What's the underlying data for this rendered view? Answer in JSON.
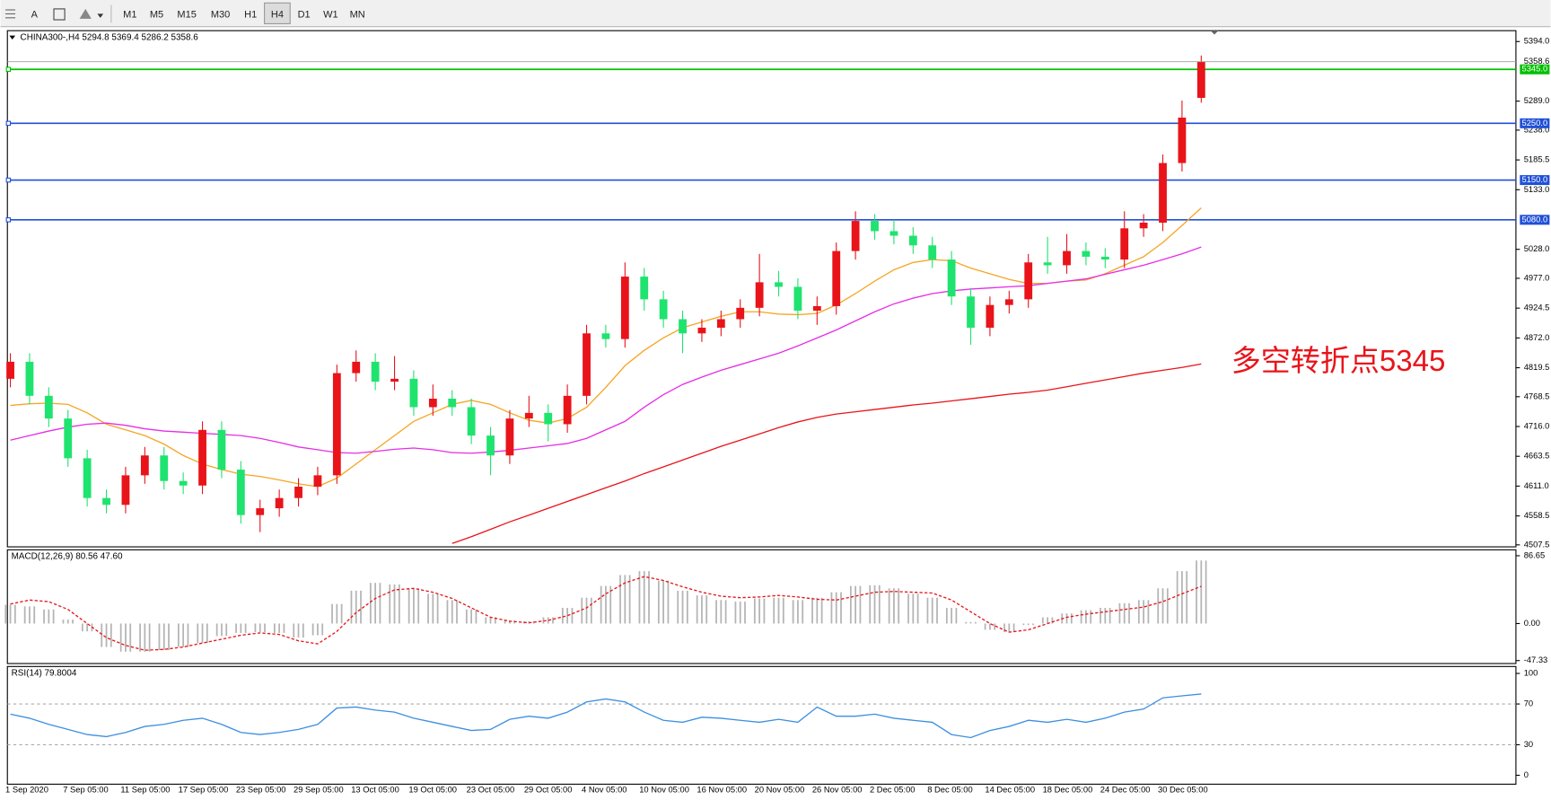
{
  "toolbar": {
    "text_tool": "A",
    "timeframes": [
      "M1",
      "M5",
      "M15",
      "M30",
      "H1",
      "H4",
      "D1",
      "W1",
      "MN"
    ],
    "active": "H4"
  },
  "chart_data": [
    {
      "type": "candlestick",
      "title": "CHINA300-,H4  5294.8 5369.4 5286.2 5358.6",
      "categories": [
        "1 Sep 2020",
        null,
        null,
        "7 Sep 05:00",
        null,
        null,
        "11 Sep 05:00",
        null,
        null,
        "17 Sep 05:00",
        null,
        null,
        "23 Sep 05:00",
        null,
        null,
        "29 Sep 05:00",
        null,
        null,
        "13 Oct 05:00",
        null,
        null,
        "19 Oct 05:00",
        null,
        null,
        "23 Oct 05:00",
        null,
        null,
        "29 Oct 05:00",
        null,
        null,
        "4 Nov 05:00",
        null,
        null,
        "10 Nov 05:00",
        null,
        null,
        "16 Nov 05:00",
        null,
        null,
        "20 Nov 05:00",
        null,
        null,
        "26 Nov 05:00",
        null,
        null,
        "2 Dec 05:00",
        null,
        null,
        "8 Dec 05:00",
        null,
        null,
        "14 Dec 05:00",
        null,
        null,
        "18 Dec 05:00",
        null,
        null,
        "24 Dec 05:00",
        null,
        null,
        "30 Dec 05:00",
        null,
        null
      ],
      "open": [
        4800,
        4830,
        4770,
        4730,
        4660,
        4590,
        4578,
        4630,
        4665,
        4620,
        4612,
        4710,
        4640,
        4560,
        4572,
        4590,
        4610,
        4630,
        4810,
        4830,
        4795,
        4800,
        4750,
        4765,
        4750,
        4700,
        4665,
        4730,
        4740,
        4720,
        4770,
        4880,
        4870,
        4980,
        4940,
        4905,
        4880,
        4890,
        4905,
        4925,
        4970,
        4962,
        4920,
        4928,
        5025,
        5078,
        5060,
        5052,
        5035,
        5010,
        4945,
        4890,
        4930,
        4940,
        5005,
        5000,
        5025,
        5015,
        5010,
        5065,
        5075,
        5180,
        5294.8
      ],
      "high": [
        4845,
        4845,
        4785,
        4745,
        4675,
        4605,
        4645,
        4680,
        4680,
        4635,
        4725,
        4725,
        4655,
        4587,
        4605,
        4625,
        4645,
        4825,
        4850,
        4845,
        4840,
        4815,
        4790,
        4780,
        4765,
        4715,
        4745,
        4770,
        4755,
        4790,
        4895,
        4895,
        5005,
        4995,
        4955,
        4920,
        4905,
        4920,
        4940,
        5020,
        4990,
        4977,
        4945,
        5040,
        5095,
        5090,
        5080,
        5067,
        5050,
        5025,
        4960,
        4945,
        4955,
        5020,
        5050,
        5055,
        5040,
        5030,
        5095,
        5090,
        5195,
        5290,
        5369.4
      ],
      "low": [
        4785,
        4755,
        4715,
        4645,
        4575,
        4563,
        4563,
        4615,
        4605,
        4597,
        4597,
        4625,
        4545,
        4530,
        4557,
        4575,
        4595,
        4615,
        4795,
        4780,
        4780,
        4735,
        4735,
        4735,
        4685,
        4630,
        4650,
        4715,
        4690,
        4705,
        4755,
        4855,
        4855,
        4920,
        4890,
        4845,
        4865,
        4875,
        4890,
        4910,
        4945,
        4905,
        4895,
        4913,
        5010,
        5045,
        5037,
        5020,
        4995,
        4930,
        4860,
        4875,
        4915,
        4925,
        4985,
        4985,
        5000,
        4995,
        4995,
        5050,
        5060,
        5165,
        5286.2
      ],
      "close": [
        4830,
        4770,
        4730,
        4660,
        4590,
        4578,
        4630,
        4665,
        4620,
        4612,
        4710,
        4640,
        4560,
        4572,
        4590,
        4610,
        4630,
        4810,
        4830,
        4795,
        4800,
        4750,
        4765,
        4750,
        4700,
        4665,
        4730,
        4740,
        4720,
        4770,
        4880,
        4870,
        4980,
        4940,
        4905,
        4880,
        4890,
        4905,
        4925,
        4970,
        4962,
        4920,
        4928,
        5025,
        5078,
        5060,
        5052,
        5035,
        5010,
        4945,
        4890,
        4930,
        4940,
        5005,
        5000,
        5025,
        5015,
        5010,
        5065,
        5075,
        5180,
        5260,
        5358.6
      ],
      "up_color": "#e8141a",
      "down_color": "#1fe36f",
      "overlays": [
        {
          "color": "#f5a623",
          "values": [
            4753,
            4756,
            4757,
            4755,
            4740,
            4720,
            4710,
            4700,
            4685,
            4665,
            4650,
            4640,
            4632,
            4628,
            4622,
            4615,
            4610,
            4625,
            4650,
            4675,
            4700,
            4725,
            4740,
            4755,
            4762,
            4755,
            4740,
            4727,
            4722,
            4730,
            4750,
            4785,
            4823,
            4850,
            4872,
            4890,
            4900,
            4910,
            4918,
            4918,
            4914,
            4913,
            4915,
            4930,
            4950,
            4972,
            4992,
            5005,
            5010,
            5008,
            4995,
            4985,
            4975,
            4968,
            4968,
            4972,
            4974,
            4985,
            5000,
            5015,
            5040,
            5070,
            5101
          ]
        },
        {
          "color": "#e62ee6",
          "values": [
            4692,
            4700,
            4708,
            4715,
            4720,
            4722,
            4718,
            4712,
            4708,
            4706,
            4704,
            4702,
            4700,
            4695,
            4688,
            4680,
            4675,
            4670,
            4669,
            4672,
            4676,
            4678,
            4675,
            4670,
            4669,
            4671,
            4674,
            4678,
            4682,
            4686,
            4695,
            4710,
            4725,
            4750,
            4772,
            4790,
            4803,
            4815,
            4825,
            4835,
            4845,
            4858,
            4872,
            4886,
            4902,
            4918,
            4932,
            4942,
            4950,
            4955,
            4958,
            4960,
            4962,
            4964,
            4968,
            4972,
            4976,
            4984,
            4992,
            5000,
            5010,
            5020,
            5032
          ]
        },
        {
          "color": "#e8141a",
          "values": [
            null,
            null,
            null,
            null,
            null,
            null,
            null,
            null,
            null,
            null,
            null,
            null,
            null,
            null,
            null,
            null,
            null,
            null,
            null,
            null,
            null,
            null,
            null,
            4510,
            4522,
            4535,
            4548,
            4560,
            4572,
            4584,
            4596,
            4608,
            4620,
            4633,
            4645,
            4657,
            4669,
            4681,
            4692,
            4703,
            4714,
            4724,
            4732,
            4738,
            4742,
            4746,
            4750,
            4754,
            4757,
            4761,
            4765,
            4769,
            4773,
            4776,
            4780,
            4786,
            4792,
            4798,
            4804,
            4810,
            4815,
            4820,
            4826
          ]
        }
      ],
      "levels": [
        {
          "value": 5345,
          "label": "5345.0",
          "color": "#00c000"
        },
        {
          "value": 5250,
          "label": "5250.0",
          "color": "#2050d8"
        },
        {
          "value": 5150,
          "label": "5150.0",
          "color": "#2050d8"
        },
        {
          "value": 5080,
          "label": "5080.0",
          "color": "#2050d8"
        }
      ],
      "ylim": [
        4507.5,
        5394
      ],
      "yticks": [
        {
          "value": 5394,
          "label": "5394.0"
        },
        {
          "value": 5289,
          "label": "5289.0"
        },
        {
          "value": 5238,
          "label": "5238.0"
        },
        5185.5,
        {
          "value": 5133,
          "label": "5133.0"
        },
        {
          "value": 5028,
          "label": "5028.0"
        },
        {
          "value": 4977,
          "label": "4977.0"
        },
        4924.5,
        {
          "value": 4872,
          "label": "4872.0"
        },
        4819.5,
        4768.5,
        {
          "value": 4716,
          "label": "4716.0"
        },
        4663.5,
        {
          "value": 4611,
          "label": "4611.0"
        },
        4558.5,
        4507.5
      ],
      "annotation": {
        "text": "多空转折点5345",
        "color": "#e8141a"
      }
    },
    {
      "type": "macd",
      "title": "MACD(12,26,9) 80.56 47.60",
      "histogram": {
        "color": "#b4b4b4",
        "values": [
          24,
          22,
          18,
          5,
          -10,
          -30,
          -36,
          -36,
          -34,
          -30,
          -25,
          -16,
          -12,
          -11,
          -12,
          -18,
          -15,
          25,
          42,
          52,
          50,
          45,
          38,
          30,
          18,
          8,
          4,
          3,
          8,
          20,
          33,
          48,
          62,
          67,
          55,
          42,
          36,
          30,
          28,
          32,
          33,
          30,
          33,
          40,
          48,
          49,
          45,
          38,
          33,
          20,
          2,
          -8,
          -11,
          -2,
          8,
          13,
          17,
          20,
          26,
          30,
          45,
          67,
          80.56
        ]
      },
      "signal": {
        "color": "#e8141a",
        "values": [
          25,
          30,
          28,
          18,
          0,
          -18,
          -28,
          -34,
          -33,
          -30,
          -25,
          -20,
          -15,
          -12,
          -14,
          -22,
          -26,
          -10,
          14,
          32,
          43,
          45,
          40,
          32,
          20,
          8,
          3,
          1,
          4,
          10,
          20,
          38,
          52,
          60,
          55,
          47,
          40,
          35,
          33,
          34,
          36,
          34,
          31,
          30,
          35,
          40,
          41,
          40,
          39,
          30,
          15,
          0,
          -11,
          -8,
          0,
          8,
          12,
          15,
          18,
          21,
          28,
          38,
          47.6
        ]
      },
      "ylim": [
        -47.33,
        86.65
      ],
      "yticks": [
        86.65,
        {
          "value": 0,
          "label": "0.00"
        },
        -47.33
      ]
    },
    {
      "type": "line",
      "title": "RSI(14) 79.8004",
      "series": [
        {
          "color": "#3c8fe0",
          "values": [
            60,
            56,
            50,
            45,
            40,
            38,
            42,
            48,
            50,
            54,
            56,
            50,
            42,
            40,
            42,
            45,
            50,
            66,
            67,
            64,
            62,
            56,
            52,
            48,
            44,
            45,
            55,
            58,
            56,
            62,
            72,
            75,
            72,
            62,
            54,
            52,
            57,
            56,
            54,
            52,
            55,
            52,
            67,
            58,
            58,
            60,
            56,
            54,
            52,
            40,
            37,
            44,
            48,
            54,
            52,
            55,
            52,
            56,
            62,
            65,
            76,
            78,
            79.8
          ]
        }
      ],
      "levels": [
        70,
        30
      ],
      "ylim": [
        0,
        100
      ],
      "yticks": [
        100,
        70,
        30,
        0
      ]
    }
  ]
}
